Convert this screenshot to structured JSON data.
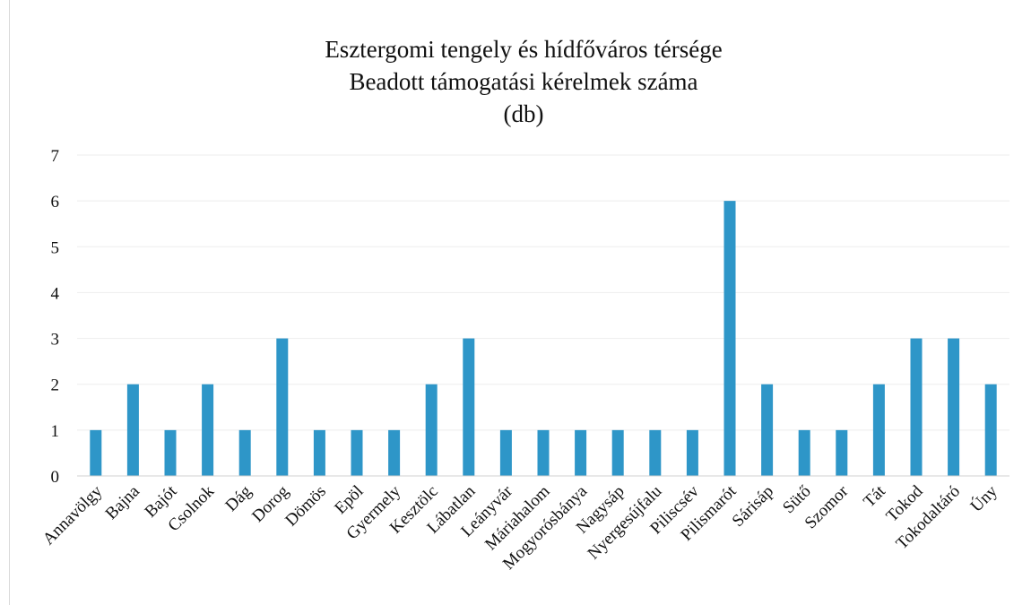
{
  "chart_data": {
    "type": "bar",
    "title_lines": [
      "Esztergomi tengely és hídfőváros térsége",
      "Beadott támogatási kérelmek száma",
      "(db)"
    ],
    "categories": [
      "Annavölgy",
      "Bajna",
      "Bajót",
      "Csolnok",
      "Dág",
      "Dorog",
      "Dömös",
      "Epöl",
      "Gyermely",
      "Kesztölc",
      "Lábatlan",
      "Leányvár",
      "Máriahalom",
      "Mogyorósbánya",
      "Nagysáp",
      "Nyergesújfalu",
      "Piliscsév",
      "Pilismarót",
      "Sárisáp",
      "Sütő",
      "Szomor",
      "Tát",
      "Tokod",
      "Tokodaltáró",
      "Úny"
    ],
    "values": [
      1,
      2,
      1,
      2,
      1,
      3,
      1,
      1,
      1,
      2,
      3,
      1,
      1,
      1,
      1,
      1,
      1,
      6,
      2,
      1,
      1,
      2,
      3,
      3,
      2
    ],
    "yticks": [
      "0",
      "1",
      "2",
      "3",
      "4",
      "5",
      "6",
      "7"
    ],
    "ylim": [
      0,
      7
    ],
    "grid": true,
    "bar_color": "#2e96c8",
    "legend": "none"
  }
}
